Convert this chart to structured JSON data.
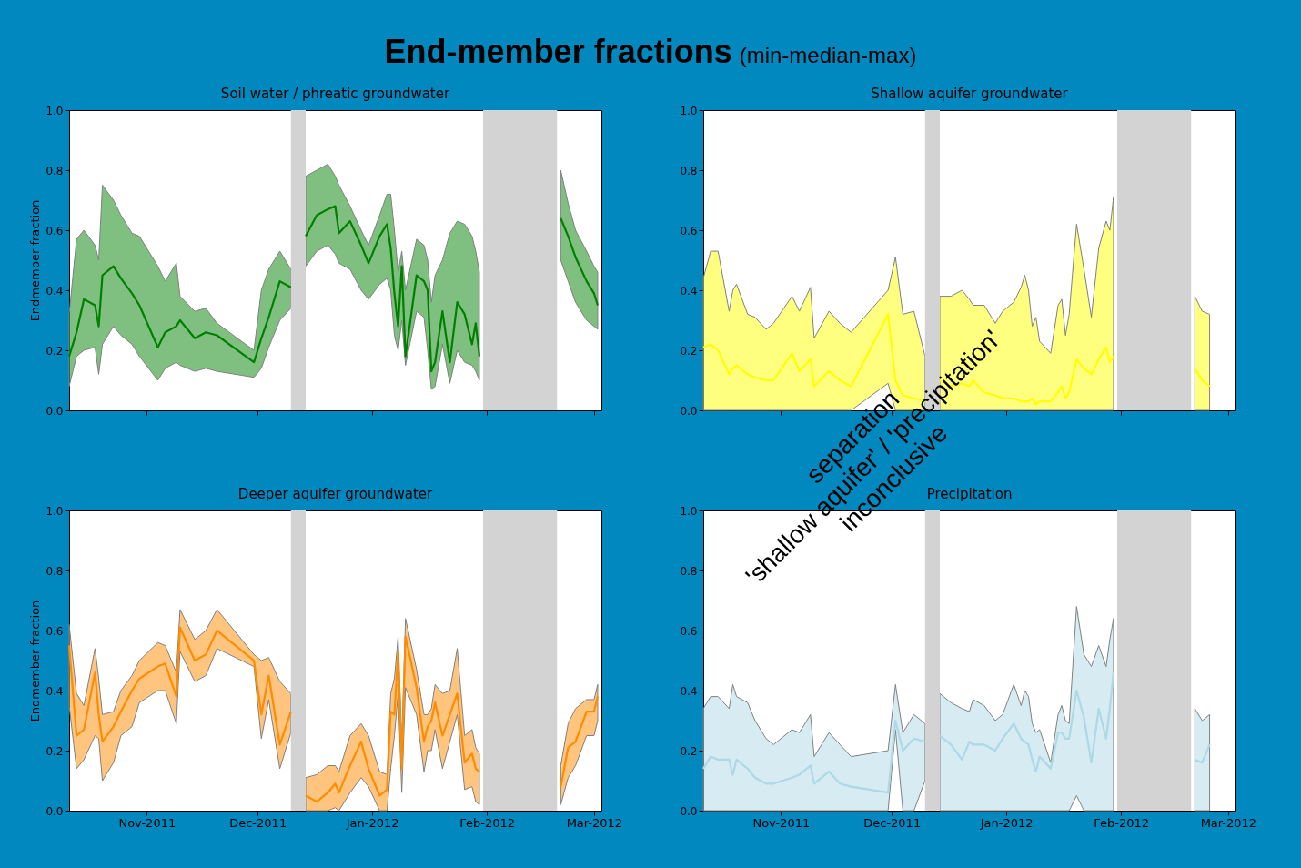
{
  "chart_data": [
    {
      "type": "other",
      "title": "End-member fractions",
      "subtitle": "(min-median-max)",
      "annotations": [
        "separation\n'shallow aquifer' / 'precipitation'\ninconclusive"
      ]
    },
    {
      "type": "line",
      "title": "Soil water / phreatic groundwater",
      "ylabel": "Endmember fraction",
      "tick_labels": "y",
      "x": [
        "2011-10-11",
        "2011-10-13",
        "2011-10-15",
        "2011-10-18",
        "2011-10-19",
        "2011-10-20",
        "2011-10-23",
        "2011-10-25",
        "2011-10-28",
        "2011-10-30",
        "2011-11-04",
        "2011-11-06",
        "2011-11-09",
        "2011-11-10",
        "2011-11-14",
        "2011-11-17",
        "2011-11-20",
        "2011-11-30",
        "2011-12-02",
        "2011-12-04",
        "2011-12-07",
        "2011-12-10",
        "2011-12-11",
        "2011-12-14",
        "2011-12-17",
        "2011-12-20",
        "2011-12-22",
        "2011-12-23",
        "2011-12-26",
        "2011-12-29",
        "2011-12-31",
        "2012-01-03",
        "2012-01-05",
        "2012-01-06",
        "2012-01-07",
        "2012-01-08",
        "2012-01-09",
        "2012-01-10",
        "2012-01-13",
        "2012-01-15",
        "2012-01-16",
        "2012-01-17",
        "2012-01-18",
        "2012-01-20",
        "2012-01-22",
        "2012-01-24",
        "2012-01-26",
        "2012-01-28",
        "2012-01-29",
        "2012-01-30",
        "2012-02-10",
        "2012-02-21",
        "2012-02-23",
        "2012-02-25",
        "2012-02-28",
        "2012-03-01",
        "2012-03-02"
      ],
      "series": [
        {
          "color": "#008000",
          "values": [
            0.18,
            0.26,
            0.37,
            0.35,
            0.28,
            0.45,
            0.48,
            0.44,
            0.39,
            0.35,
            0.21,
            0.26,
            0.28,
            0.3,
            0.24,
            0.26,
            0.25,
            0.16,
            0.24,
            0.31,
            0.43,
            0.41,
            null,
            0.58,
            0.65,
            0.67,
            0.68,
            0.59,
            0.63,
            0.55,
            0.49,
            0.58,
            0.62,
            0.54,
            0.39,
            0.28,
            0.48,
            0.18,
            0.45,
            0.43,
            0.4,
            0.13,
            0.16,
            0.33,
            0.16,
            0.36,
            0.32,
            0.22,
            0.29,
            0.18,
            null,
            0.64,
            0.58,
            0.51,
            0.43,
            0.39,
            0.35
          ],
          "lower": [
            0.08,
            0.18,
            0.2,
            0.21,
            0.12,
            0.22,
            0.28,
            0.25,
            0.22,
            0.18,
            0.1,
            0.14,
            0.16,
            0.15,
            0.13,
            0.14,
            0.13,
            0.11,
            0.14,
            0.21,
            0.3,
            0.34,
            null,
            0.48,
            0.53,
            0.55,
            0.52,
            0.49,
            0.47,
            0.4,
            0.37,
            0.42,
            0.44,
            0.4,
            0.25,
            0.2,
            0.3,
            0.15,
            0.33,
            0.31,
            0.2,
            0.07,
            0.08,
            0.22,
            0.09,
            0.2,
            0.16,
            0.15,
            0.13,
            0.1,
            null,
            0.5,
            0.43,
            0.36,
            0.3,
            0.28,
            0.27
          ],
          "upper": [
            0.32,
            0.57,
            0.6,
            0.55,
            0.5,
            0.75,
            0.7,
            0.65,
            0.59,
            0.58,
            0.48,
            0.43,
            0.49,
            0.38,
            0.33,
            0.34,
            0.29,
            0.2,
            0.4,
            0.47,
            0.53,
            0.47,
            null,
            0.78,
            0.8,
            0.82,
            0.78,
            0.75,
            0.68,
            0.6,
            0.55,
            0.65,
            0.72,
            0.72,
            0.6,
            0.46,
            0.53,
            0.4,
            0.57,
            0.55,
            0.5,
            0.36,
            0.45,
            0.5,
            0.59,
            0.63,
            0.62,
            0.58,
            0.53,
            0.46,
            null,
            0.8,
            0.69,
            0.6,
            0.53,
            0.48,
            0.46
          ]
        }
      ],
      "xlim": [
        "2011-10-11",
        "2012-03-03"
      ],
      "xticks": [
        {
          "value": "2011-11-01",
          "label": null
        },
        {
          "value": "2011-12-01",
          "label": null
        },
        {
          "value": "2012-01-01",
          "label": null
        },
        {
          "value": "2012-02-01",
          "label": null
        },
        {
          "value": "2012-03-01",
          "label": null
        }
      ],
      "ylim": [
        0,
        1
      ],
      "yticks": [
        {
          "value": 0,
          "label": "0.0"
        },
        {
          "value": 0.2,
          "label": "0.2"
        },
        {
          "value": 0.4,
          "label": "0.4"
        },
        {
          "value": 0.6,
          "label": "0.6"
        },
        {
          "value": 0.8,
          "label": "0.8"
        },
        {
          "value": 1,
          "label": "1.0"
        }
      ],
      "bands": [
        {
          "axis": "x",
          "from": "2011-12-10",
          "to": "2011-12-14",
          "color": "#d3d3d3"
        },
        {
          "axis": "x",
          "from": "2012-01-31",
          "to": "2012-02-20",
          "color": "#d3d3d3"
        }
      ]
    },
    {
      "type": "line",
      "title": "Shallow aquifer groundwater",
      "tick_labels": "y",
      "x": [
        "2011-10-11",
        "2011-10-13",
        "2011-10-15",
        "2011-10-18",
        "2011-10-19",
        "2011-10-20",
        "2011-10-23",
        "2011-10-25",
        "2011-10-28",
        "2011-10-30",
        "2011-11-04",
        "2011-11-06",
        "2011-11-09",
        "2011-11-10",
        "2011-11-14",
        "2011-11-17",
        "2011-11-20",
        "2011-11-30",
        "2011-12-02",
        "2011-12-04",
        "2011-12-07",
        "2011-12-10",
        "2011-12-11",
        "2011-12-14",
        "2011-12-17",
        "2011-12-20",
        "2011-12-22",
        "2011-12-23",
        "2011-12-26",
        "2011-12-29",
        "2011-12-31",
        "2012-01-03",
        "2012-01-05",
        "2012-01-06",
        "2012-01-07",
        "2012-01-08",
        "2012-01-09",
        "2012-01-10",
        "2012-01-13",
        "2012-01-15",
        "2012-01-16",
        "2012-01-17",
        "2012-01-18",
        "2012-01-20",
        "2012-01-22",
        "2012-01-24",
        "2012-01-26",
        "2012-01-28",
        "2012-01-29",
        "2012-01-30",
        "2012-02-10",
        "2012-02-21",
        "2012-02-23",
        "2012-02-25"
      ],
      "series": [
        {
          "color": "#ffff00",
          "values": [
            0.21,
            0.22,
            0.2,
            0.12,
            0.14,
            0.15,
            0.12,
            0.11,
            0.1,
            0.1,
            0.19,
            0.13,
            0.17,
            0.08,
            0.13,
            0.1,
            0.08,
            0.32,
            0.1,
            0.05,
            0.04,
            0.03,
            null,
            0.1,
            0.08,
            0.09,
            0.08,
            0.1,
            0.06,
            0.05,
            0.04,
            0.04,
            0.03,
            0.03,
            0.03,
            0.04,
            0.02,
            0.03,
            0.03,
            0.06,
            0.08,
            0.04,
            0.06,
            0.17,
            0.14,
            0.12,
            0.17,
            0.21,
            0.16,
            0.18,
            null,
            0.14,
            0.1,
            0.08
          ],
          "lower": [
            0,
            0,
            0,
            0,
            0,
            0,
            0,
            0,
            0,
            0,
            0,
            0,
            0,
            0,
            0,
            0,
            0,
            0.09,
            0,
            0,
            0,
            0,
            null,
            0,
            0,
            0,
            0,
            0,
            0,
            0,
            0,
            0,
            0,
            0,
            0,
            0,
            0,
            0,
            0,
            0,
            0,
            0,
            0,
            0,
            0,
            0,
            0,
            0,
            0,
            0,
            null,
            0,
            0,
            0
          ],
          "upper": [
            0.44,
            0.53,
            0.53,
            0.33,
            0.4,
            0.42,
            0.32,
            0.31,
            0.27,
            0.29,
            0.38,
            0.33,
            0.41,
            0.24,
            0.33,
            0.29,
            0.26,
            0.4,
            0.51,
            0.32,
            0.33,
            0.18,
            null,
            0.38,
            0.38,
            0.4,
            0.37,
            0.35,
            0.35,
            0.29,
            0.33,
            0.36,
            0.41,
            0.45,
            0.4,
            0.28,
            0.31,
            0.23,
            0.19,
            0.35,
            0.37,
            0.25,
            0.32,
            0.62,
            0.47,
            0.31,
            0.54,
            0.63,
            0.6,
            0.71,
            null,
            0.38,
            0.33,
            0.32
          ]
        }
      ],
      "xlim": [
        "2011-10-11",
        "2012-03-03"
      ],
      "xticks": [
        {
          "value": "2011-11-01",
          "label": null
        },
        {
          "value": "2011-12-01",
          "label": null
        },
        {
          "value": "2012-01-01",
          "label": null
        },
        {
          "value": "2012-02-01",
          "label": null
        },
        {
          "value": "2012-03-01",
          "label": null
        }
      ],
      "ylim": [
        0,
        1
      ],
      "yticks": [
        {
          "value": 0,
          "label": "0.0"
        },
        {
          "value": 0.2,
          "label": "0.2"
        },
        {
          "value": 0.4,
          "label": "0.4"
        },
        {
          "value": 0.6,
          "label": "0.6"
        },
        {
          "value": 0.8,
          "label": "0.8"
        },
        {
          "value": 1,
          "label": "1.0"
        }
      ],
      "bands": [
        {
          "axis": "x",
          "from": "2011-12-10",
          "to": "2011-12-14",
          "color": "#d3d3d3"
        },
        {
          "axis": "x",
          "from": "2012-01-31",
          "to": "2012-02-20",
          "color": "#d3d3d3"
        }
      ]
    },
    {
      "type": "line",
      "title": "Deeper aquifer groundwater",
      "ylabel": "Endmember fraction",
      "x": [
        "2011-10-11",
        "2011-10-13",
        "2011-10-15",
        "2011-10-18",
        "2011-10-19",
        "2011-10-20",
        "2011-10-23",
        "2011-10-25",
        "2011-10-28",
        "2011-10-30",
        "2011-11-04",
        "2011-11-06",
        "2011-11-09",
        "2011-11-10",
        "2011-11-14",
        "2011-11-17",
        "2011-11-20",
        "2011-11-30",
        "2011-12-02",
        "2011-12-04",
        "2011-12-07",
        "2011-12-10",
        "2011-12-11",
        "2011-12-14",
        "2011-12-17",
        "2011-12-20",
        "2011-12-22",
        "2011-12-23",
        "2011-12-26",
        "2011-12-29",
        "2011-12-31",
        "2012-01-03",
        "2012-01-05",
        "2012-01-06",
        "2012-01-07",
        "2012-01-08",
        "2012-01-09",
        "2012-01-10",
        "2012-01-13",
        "2012-01-15",
        "2012-01-16",
        "2012-01-17",
        "2012-01-18",
        "2012-01-20",
        "2012-01-22",
        "2012-01-24",
        "2012-01-26",
        "2012-01-28",
        "2012-01-29",
        "2012-01-30",
        "2012-02-10",
        "2012-02-21",
        "2012-02-23",
        "2012-02-25",
        "2012-02-28",
        "2012-03-01",
        "2012-03-02"
      ],
      "series": [
        {
          "color": "#ff8c00",
          "values": [
            0.55,
            0.25,
            0.27,
            0.46,
            0.32,
            0.23,
            0.28,
            0.33,
            0.4,
            0.44,
            0.48,
            0.49,
            0.38,
            0.61,
            0.5,
            0.52,
            0.6,
            0.5,
            0.32,
            0.45,
            0.22,
            0.33,
            null,
            0.05,
            0.03,
            0.06,
            0.09,
            0.06,
            0.15,
            0.23,
            0.14,
            0.05,
            0.07,
            0.33,
            0.32,
            0.53,
            0.14,
            0.58,
            0.41,
            0.23,
            0.28,
            0.3,
            0.36,
            0.25,
            0.32,
            0.39,
            0.16,
            0.19,
            0.14,
            0.13,
            null,
            0.08,
            0.21,
            0.23,
            0.33,
            0.33,
            0.38
          ],
          "lower": [
            0.35,
            0.14,
            0.17,
            0.25,
            0.24,
            0.1,
            0.16,
            0.25,
            0.28,
            0.36,
            0.4,
            0.4,
            0.29,
            0.53,
            0.43,
            0.45,
            0.54,
            0.48,
            0.24,
            0.37,
            0.14,
            0.26,
            null,
            0,
            0,
            0,
            0.01,
            0,
            0.06,
            0.11,
            0.08,
            0,
            0,
            0.14,
            0.25,
            0.39,
            0.06,
            0.41,
            0.32,
            0.13,
            0.2,
            0.2,
            0.27,
            0.14,
            0.23,
            0.32,
            0.07,
            0.08,
            0.03,
            0.02,
            null,
            0.02,
            0.11,
            0.15,
            0.25,
            0.25,
            0.3
          ],
          "upper": [
            0.62,
            0.39,
            0.35,
            0.54,
            0.44,
            0.32,
            0.33,
            0.4,
            0.45,
            0.5,
            0.56,
            0.55,
            0.46,
            0.67,
            0.57,
            0.6,
            0.67,
            0.52,
            0.5,
            0.51,
            0.43,
            0.39,
            null,
            0.11,
            0.12,
            0.15,
            0.15,
            0.13,
            0.25,
            0.29,
            0.25,
            0.13,
            0.12,
            0.39,
            0.44,
            0.58,
            0.23,
            0.64,
            0.47,
            0.32,
            0.32,
            0.34,
            0.42,
            0.39,
            0.4,
            0.54,
            0.25,
            0.27,
            0.21,
            0.19,
            null,
            0.15,
            0.29,
            0.34,
            0.37,
            0.37,
            0.42
          ]
        }
      ],
      "xlim": [
        "2011-10-11",
        "2012-03-03"
      ],
      "xticks": [
        {
          "value": "2011-11-01",
          "label": "Nov-2011"
        },
        {
          "value": "2011-12-01",
          "label": "Dec-2011"
        },
        {
          "value": "2012-01-01",
          "label": "Jan-2012"
        },
        {
          "value": "2012-02-01",
          "label": "Feb-2012"
        },
        {
          "value": "2012-03-01",
          "label": "Mar-2012"
        }
      ],
      "ylim": [
        0,
        1
      ],
      "yticks": [
        {
          "value": 0,
          "label": "0.0"
        },
        {
          "value": 0.2,
          "label": "0.2"
        },
        {
          "value": 0.4,
          "label": "0.4"
        },
        {
          "value": 0.6,
          "label": "0.6"
        },
        {
          "value": 0.8,
          "label": "0.8"
        },
        {
          "value": 1,
          "label": "1.0"
        }
      ],
      "bands": [
        {
          "axis": "x",
          "from": "2011-12-10",
          "to": "2011-12-14",
          "color": "#d3d3d3"
        },
        {
          "axis": "x",
          "from": "2012-01-31",
          "to": "2012-02-20",
          "color": "#d3d3d3"
        }
      ]
    },
    {
      "type": "line",
      "title": "Precipitation",
      "x": [
        "2011-10-11",
        "2011-10-13",
        "2011-10-15",
        "2011-10-18",
        "2011-10-19",
        "2011-10-20",
        "2011-10-23",
        "2011-10-25",
        "2011-10-28",
        "2011-10-30",
        "2011-11-04",
        "2011-11-06",
        "2011-11-09",
        "2011-11-10",
        "2011-11-14",
        "2011-11-17",
        "2011-11-20",
        "2011-11-30",
        "2011-12-02",
        "2011-12-04",
        "2011-12-07",
        "2011-12-10",
        "2011-12-11",
        "2011-12-14",
        "2011-12-17",
        "2011-12-20",
        "2011-12-22",
        "2011-12-23",
        "2011-12-26",
        "2011-12-29",
        "2011-12-31",
        "2012-01-03",
        "2012-01-05",
        "2012-01-06",
        "2012-01-07",
        "2012-01-08",
        "2012-01-09",
        "2012-01-10",
        "2012-01-13",
        "2012-01-15",
        "2012-01-16",
        "2012-01-17",
        "2012-01-18",
        "2012-01-20",
        "2012-01-22",
        "2012-01-24",
        "2012-01-26",
        "2012-01-28",
        "2012-01-29",
        "2012-01-30",
        "2012-02-10",
        "2012-02-21",
        "2012-02-23",
        "2012-02-25"
      ],
      "series": [
        {
          "color": "#add8e6",
          "values": [
            0.14,
            0.18,
            0.17,
            0.17,
            0.12,
            0.17,
            0.14,
            0.11,
            0.09,
            0.09,
            0.11,
            0.12,
            0.15,
            0.09,
            0.13,
            0.09,
            0.08,
            0.06,
            0.3,
            0.2,
            0.24,
            0.23,
            null,
            0.25,
            0.22,
            0.17,
            0.23,
            0.22,
            0.22,
            0.2,
            0.24,
            0.29,
            0.24,
            0.23,
            0.22,
            0.17,
            0.13,
            0.18,
            0.14,
            0.26,
            0.26,
            0.24,
            0.24,
            0.4,
            0.31,
            0.16,
            0.34,
            0.24,
            0.34,
            0.46,
            null,
            0.17,
            0.16,
            0.22
          ],
          "lower": [
            0,
            0,
            0,
            0,
            0,
            0,
            0,
            0,
            0,
            0,
            0,
            0,
            0,
            0,
            0,
            0,
            0,
            0,
            0.27,
            0,
            0,
            0.1,
            null,
            0,
            0,
            0,
            0,
            0,
            0,
            0,
            0,
            0,
            0,
            0,
            0,
            0,
            0,
            0,
            0,
            0,
            0,
            0,
            0,
            0.05,
            0,
            0,
            0,
            0,
            0,
            0,
            null,
            0,
            0,
            0
          ],
          "upper": [
            0.34,
            0.38,
            0.38,
            0.34,
            0.42,
            0.38,
            0.36,
            0.3,
            0.24,
            0.22,
            0.27,
            0.26,
            0.32,
            0.18,
            0.26,
            0.22,
            0.18,
            0.2,
            0.42,
            0.26,
            0.32,
            0.29,
            null,
            0.39,
            0.36,
            0.34,
            0.33,
            0.37,
            0.35,
            0.3,
            0.32,
            0.42,
            0.35,
            0.4,
            0.38,
            0.29,
            0.26,
            0.27,
            0.16,
            0.32,
            0.35,
            0.3,
            0.29,
            0.68,
            0.52,
            0.48,
            0.55,
            0.48,
            0.57,
            0.64,
            null,
            0.34,
            0.3,
            0.32
          ]
        }
      ],
      "xlim": [
        "2011-10-11",
        "2012-03-03"
      ],
      "xticks": [
        {
          "value": "2011-11-01",
          "label": "Nov-2011"
        },
        {
          "value": "2011-12-01",
          "label": "Dec-2011"
        },
        {
          "value": "2012-01-01",
          "label": "Jan-2012"
        },
        {
          "value": "2012-02-01",
          "label": "Feb-2012"
        },
        {
          "value": "2012-03-01",
          "label": "Mar-2012"
        }
      ],
      "ylim": [
        0,
        1
      ],
      "yticks": [
        {
          "value": 0,
          "label": "0.0"
        },
        {
          "value": 0.2,
          "label": "0.2"
        },
        {
          "value": 0.4,
          "label": "0.4"
        },
        {
          "value": 0.6,
          "label": "0.6"
        },
        {
          "value": 0.8,
          "label": "0.8"
        },
        {
          "value": 1,
          "label": "1.0"
        }
      ],
      "bands": [
        {
          "axis": "x",
          "from": "2011-12-10",
          "to": "2011-12-14",
          "color": "#d3d3d3"
        },
        {
          "axis": "x",
          "from": "2012-01-31",
          "to": "2012-02-20",
          "color": "#d3d3d3"
        }
      ]
    }
  ]
}
